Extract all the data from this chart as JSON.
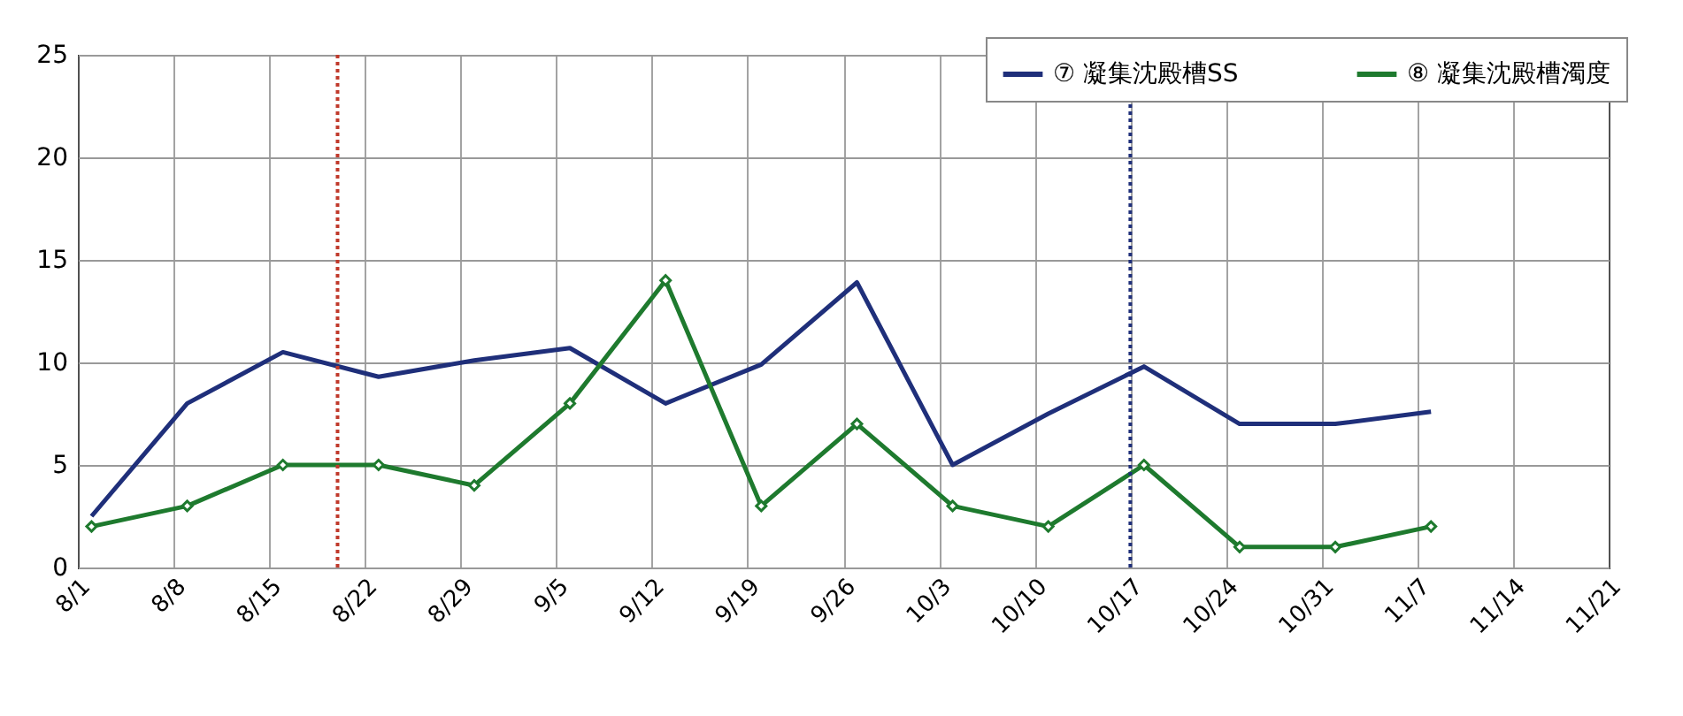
{
  "chart_data": {
    "type": "line",
    "x": [
      "--08-02",
      "--08-09",
      "--08-16",
      "--08-23",
      "--08-30",
      "--09-06",
      "--09-13",
      "--09-20",
      "--09-27",
      "--10-04",
      "--10-11",
      "--10-18",
      "--10-25",
      "--11-01",
      "--11-08"
    ],
    "series": [
      {
        "name": "⑦ 凝集沈殿槽SS",
        "color": "#1f2f7a",
        "marker": "none",
        "values": [
          2.5,
          8,
          10.5,
          9.3,
          10.1,
          10.7,
          8,
          9.9,
          13.9,
          5,
          7.5,
          9.8,
          7,
          7,
          7.6
        ]
      },
      {
        "name": "⑧ 凝集沈殿槽濁度",
        "color": "#1e7a2e",
        "marker": "diamond",
        "values": [
          2,
          3,
          5,
          5,
          4,
          8,
          14,
          3,
          7,
          3,
          2,
          5,
          1,
          1,
          2
        ]
      }
    ],
    "xlim": [
      "--08-01",
      "--11-21"
    ],
    "xticks": [
      {
        "value": "--08-01",
        "label": "8/1"
      },
      {
        "value": "--08-08",
        "label": "8/8"
      },
      {
        "value": "--08-15",
        "label": "8/15"
      },
      {
        "value": "--08-22",
        "label": "8/22"
      },
      {
        "value": "--08-29",
        "label": "8/29"
      },
      {
        "value": "--09-05",
        "label": "9/5"
      },
      {
        "value": "--09-12",
        "label": "9/12"
      },
      {
        "value": "--09-19",
        "label": "9/19"
      },
      {
        "value": "--09-26",
        "label": "9/26"
      },
      {
        "value": "--10-03",
        "label": "10/3"
      },
      {
        "value": "--10-10",
        "label": "10/10"
      },
      {
        "value": "--10-17",
        "label": "10/17"
      },
      {
        "value": "--10-24",
        "label": "10/24"
      },
      {
        "value": "--10-31",
        "label": "10/31"
      },
      {
        "value": "--11-07",
        "label": "11/7"
      },
      {
        "value": "--11-14",
        "label": "11/14"
      },
      {
        "value": "--11-21",
        "label": "11/21"
      }
    ],
    "ylim": [
      0,
      25
    ],
    "yticks": [
      0,
      5,
      10,
      15,
      20,
      25
    ],
    "ref_lines": [
      {
        "axis": "x",
        "value": "--08-20",
        "color": "#c0392b",
        "line_style": "dotted"
      },
      {
        "axis": "x",
        "value": "--10-17",
        "color": "#1f2f7a",
        "line_style": "dotted"
      }
    ],
    "grid": true,
    "legend": "top right",
    "line_style": "solid"
  }
}
